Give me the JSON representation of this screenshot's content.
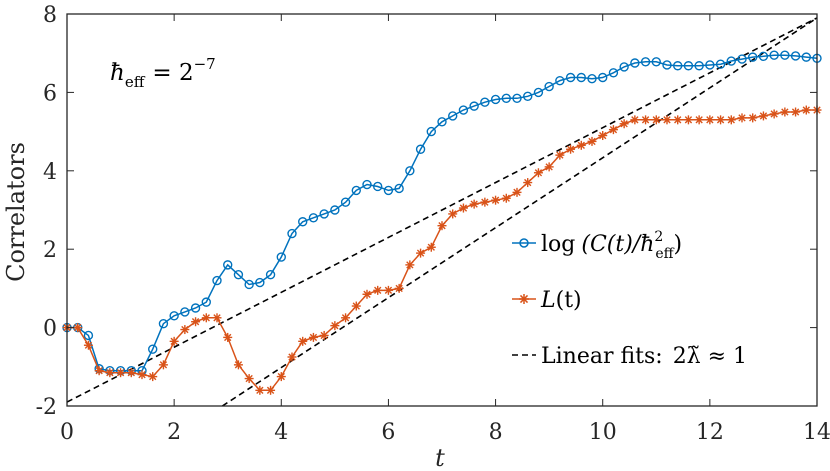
{
  "chart_data": {
    "type": "line",
    "xlabel": "t",
    "ylabel": "Correlators",
    "xlim": [
      0,
      14
    ],
    "ylim": [
      -2,
      8
    ],
    "xticks": [
      0,
      2,
      4,
      6,
      8,
      10,
      12,
      14
    ],
    "yticks": [
      -2,
      0,
      2,
      4,
      6,
      8
    ],
    "annotation": {
      "hbar": "ħ",
      "sub": "eff",
      "equals": "= 2",
      "exp": "−7"
    },
    "legend_placement": "bottom-right",
    "series": [
      {
        "name": "log(C(t)/ħ_eff^2)",
        "legend": {
          "a": "log",
          "b": "(C(t)/ħ",
          "sup": "2",
          "sub": "eff",
          "c": ")"
        },
        "color": "#0072BD",
        "marker": "circle",
        "x": [
          0.0,
          0.2,
          0.4,
          0.6,
          0.8,
          1.0,
          1.2,
          1.4,
          1.6,
          1.8,
          2.0,
          2.2,
          2.4,
          2.6,
          2.8,
          3.0,
          3.2,
          3.4,
          3.6,
          3.8,
          4.0,
          4.2,
          4.4,
          4.6,
          4.8,
          5.0,
          5.2,
          5.4,
          5.6,
          5.8,
          6.0,
          6.2,
          6.4,
          6.6,
          6.8,
          7.0,
          7.2,
          7.4,
          7.6,
          7.8,
          8.0,
          8.2,
          8.4,
          8.6,
          8.8,
          9.0,
          9.2,
          9.4,
          9.6,
          9.8,
          10.0,
          10.2,
          10.4,
          10.6,
          10.8,
          11.0,
          11.2,
          11.4,
          11.6,
          11.8,
          12.0,
          12.2,
          12.4,
          12.6,
          12.8,
          13.0,
          13.2,
          13.4,
          13.6,
          13.8,
          14.0
        ],
        "y": [
          0.0,
          0.0,
          -0.2,
          -1.05,
          -1.1,
          -1.1,
          -1.1,
          -1.1,
          -0.55,
          0.1,
          0.3,
          0.4,
          0.5,
          0.65,
          1.2,
          1.6,
          1.35,
          1.1,
          1.15,
          1.35,
          1.8,
          2.4,
          2.7,
          2.8,
          2.9,
          3.0,
          3.2,
          3.5,
          3.65,
          3.6,
          3.5,
          3.55,
          4.0,
          4.55,
          5.0,
          5.25,
          5.4,
          5.55,
          5.65,
          5.75,
          5.82,
          5.85,
          5.85,
          5.9,
          6.0,
          6.15,
          6.3,
          6.38,
          6.38,
          6.35,
          6.38,
          6.5,
          6.65,
          6.75,
          6.78,
          6.78,
          6.7,
          6.68,
          6.68,
          6.68,
          6.7,
          6.72,
          6.8,
          6.85,
          6.9,
          6.92,
          6.95,
          6.95,
          6.93,
          6.9,
          6.87
        ]
      },
      {
        "name": "L(t)",
        "legend": {
          "a": "L",
          "b": "(t)"
        },
        "color": "#D95319",
        "marker": "star",
        "x": [
          0.0,
          0.2,
          0.4,
          0.6,
          0.8,
          1.0,
          1.2,
          1.4,
          1.6,
          1.8,
          2.0,
          2.2,
          2.4,
          2.6,
          2.8,
          3.0,
          3.2,
          3.4,
          3.6,
          3.8,
          4.0,
          4.2,
          4.4,
          4.6,
          4.8,
          5.0,
          5.2,
          5.4,
          5.6,
          5.8,
          6.0,
          6.2,
          6.4,
          6.6,
          6.8,
          7.0,
          7.2,
          7.4,
          7.6,
          7.8,
          8.0,
          8.2,
          8.4,
          8.6,
          8.8,
          9.0,
          9.2,
          9.4,
          9.6,
          9.8,
          10.0,
          10.2,
          10.4,
          10.6,
          10.8,
          11.0,
          11.2,
          11.4,
          11.6,
          11.8,
          12.0,
          12.2,
          12.4,
          12.6,
          12.8,
          13.0,
          13.2,
          13.4,
          13.6,
          13.8,
          14.0
        ],
        "y": [
          0.0,
          0.0,
          -0.45,
          -1.1,
          -1.15,
          -1.15,
          -1.15,
          -1.2,
          -1.25,
          -0.95,
          -0.35,
          -0.05,
          0.15,
          0.25,
          0.25,
          -0.25,
          -0.95,
          -1.3,
          -1.6,
          -1.6,
          -1.25,
          -0.75,
          -0.35,
          -0.25,
          -0.2,
          0.05,
          0.25,
          0.55,
          0.85,
          0.95,
          0.95,
          1.0,
          1.6,
          1.9,
          2.05,
          2.6,
          2.9,
          3.05,
          3.15,
          3.2,
          3.25,
          3.3,
          3.45,
          3.7,
          3.95,
          4.1,
          4.4,
          4.55,
          4.65,
          4.75,
          4.9,
          5.05,
          5.2,
          5.3,
          5.3,
          5.3,
          5.3,
          5.3,
          5.3,
          5.3,
          5.3,
          5.3,
          5.3,
          5.35,
          5.35,
          5.4,
          5.45,
          5.5,
          5.5,
          5.55,
          5.55
        ]
      },
      {
        "name": "Linear fits: 2λ̃ ≈ 1",
        "legend": {
          "a": "Linear fits:",
          "b": "2λ̃ ≈ 1"
        },
        "color": "#000000",
        "style": "dashed",
        "lines": [
          {
            "x": [
              0,
              14
            ],
            "y": [
              -1.9,
              7.9
            ]
          },
          {
            "x": [
              2.9,
              14
            ],
            "y": [
              -2.0,
              7.9
            ]
          }
        ]
      }
    ]
  }
}
